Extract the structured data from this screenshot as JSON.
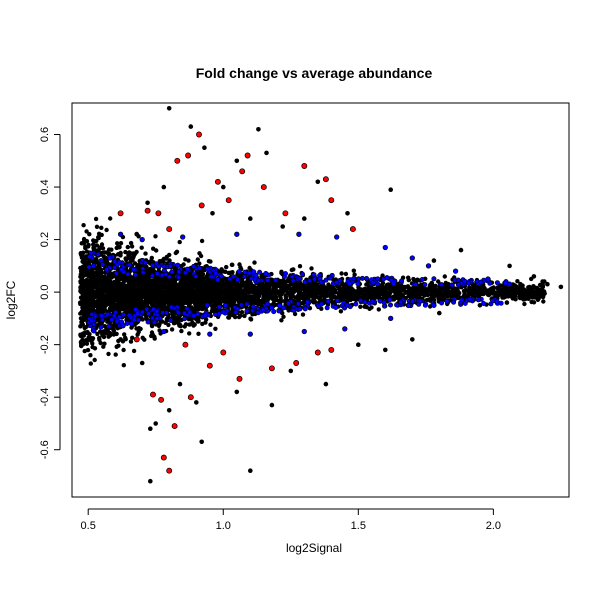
{
  "chart_data": {
    "type": "scatter",
    "title": "Fold change vs average abundance",
    "xlabel": "log2Signal",
    "ylabel": "log2FC",
    "xlim": [
      0.44,
      2.28
    ],
    "ylim": [
      -0.78,
      0.72
    ],
    "x_ticks": [
      0.5,
      1.0,
      1.5,
      2.0
    ],
    "x_tick_labels": [
      "0.5",
      "1.0",
      "1.5",
      "2.0"
    ],
    "y_ticks": [
      -0.6,
      -0.4,
      -0.2,
      0.0,
      0.2,
      0.4,
      0.6
    ],
    "y_tick_labels": [
      "-0.6",
      "-0.4",
      "-0.2",
      "0.0",
      "0.2",
      "0.4",
      "0.6"
    ],
    "grid": false,
    "legend": "none",
    "colors": {
      "background": "#000000",
      "moderate": "#0000ff",
      "significant": "#ff0000",
      "outline": "#000000"
    },
    "series": [
      {
        "points": [
          [
            0.8,
            0.7
          ],
          [
            0.88,
            0.63
          ],
          [
            0.93,
            0.55
          ],
          [
            1.13,
            0.62
          ],
          [
            1.16,
            0.53
          ],
          [
            1.05,
            0.5
          ],
          [
            0.72,
            0.34
          ],
          [
            0.78,
            0.4
          ],
          [
            1.0,
            0.4
          ],
          [
            1.35,
            0.42
          ],
          [
            1.62,
            0.39
          ],
          [
            1.46,
            0.3
          ],
          [
            1.88,
            0.16
          ],
          [
            2.06,
            0.1
          ],
          [
            2.15,
            0.06
          ],
          [
            2.2,
            0.03
          ],
          [
            2.25,
            0.02
          ],
          [
            2.1,
            0.03
          ],
          [
            1.78,
            0.12
          ],
          [
            1.22,
            0.25
          ],
          [
            1.3,
            0.28
          ],
          [
            0.68,
            0.22
          ],
          [
            0.96,
            0.3
          ],
          [
            1.1,
            0.28
          ],
          [
            0.75,
            -0.5
          ],
          [
            0.73,
            -0.52
          ],
          [
            0.92,
            -0.57
          ],
          [
            0.73,
            -0.72
          ],
          [
            1.1,
            -0.68
          ],
          [
            0.8,
            -0.45
          ],
          [
            1.18,
            -0.43
          ],
          [
            1.38,
            -0.35
          ],
          [
            1.6,
            -0.22
          ],
          [
            1.7,
            -0.18
          ],
          [
            0.7,
            -0.27
          ],
          [
            0.84,
            -0.35
          ],
          [
            1.05,
            -0.38
          ],
          [
            1.25,
            -0.3
          ],
          [
            1.8,
            -0.08
          ],
          [
            1.95,
            -0.05
          ],
          [
            2.05,
            -0.04
          ],
          [
            1.5,
            -0.2
          ],
          [
            0.9,
            -0.42
          ],
          [
            0.62,
            -0.18
          ]
        ]
      },
      {
        "points": [
          [
            0.62,
            0.22
          ],
          [
            0.7,
            0.2
          ],
          [
            0.85,
            0.21
          ],
          [
            1.05,
            0.22
          ],
          [
            1.28,
            0.22
          ],
          [
            1.42,
            0.21
          ],
          [
            1.6,
            0.17
          ],
          [
            1.7,
            0.13
          ],
          [
            1.86,
            0.08
          ],
          [
            1.98,
            0.05
          ],
          [
            2.06,
            0.03
          ],
          [
            1.76,
            0.1
          ],
          [
            0.52,
            0.1
          ],
          [
            0.58,
            0.13
          ],
          [
            0.66,
            -0.12
          ],
          [
            0.78,
            -0.15
          ],
          [
            0.95,
            -0.16
          ],
          [
            1.1,
            -0.16
          ],
          [
            1.3,
            -0.15
          ],
          [
            1.45,
            -0.14
          ],
          [
            1.62,
            -0.1
          ],
          [
            1.78,
            -0.05
          ],
          [
            0.55,
            -0.09
          ]
        ]
      },
      {
        "points": [
          [
            0.91,
            0.6
          ],
          [
            0.87,
            0.52
          ],
          [
            0.83,
            0.5
          ],
          [
            1.09,
            0.52
          ],
          [
            0.98,
            0.42
          ],
          [
            1.07,
            0.46
          ],
          [
            1.15,
            0.4
          ],
          [
            1.3,
            0.48
          ],
          [
            1.38,
            0.43
          ],
          [
            1.4,
            0.35
          ],
          [
            1.48,
            0.24
          ],
          [
            1.23,
            0.3
          ],
          [
            0.62,
            0.3
          ],
          [
            0.72,
            0.31
          ],
          [
            0.76,
            0.3
          ],
          [
            0.8,
            0.24
          ],
          [
            0.92,
            0.33
          ],
          [
            1.02,
            0.35
          ],
          [
            0.78,
            -0.63
          ],
          [
            0.82,
            -0.51
          ],
          [
            0.8,
            -0.68
          ],
          [
            0.74,
            -0.39
          ],
          [
            0.77,
            -0.41
          ],
          [
            0.88,
            -0.4
          ],
          [
            0.95,
            -0.28
          ],
          [
            1.06,
            -0.33
          ],
          [
            1.18,
            -0.29
          ],
          [
            1.27,
            -0.27
          ],
          [
            1.35,
            -0.23
          ],
          [
            1.4,
            -0.22
          ],
          [
            0.68,
            -0.18
          ],
          [
            0.86,
            -0.2
          ],
          [
            1.0,
            -0.23
          ]
        ]
      }
    ]
  }
}
